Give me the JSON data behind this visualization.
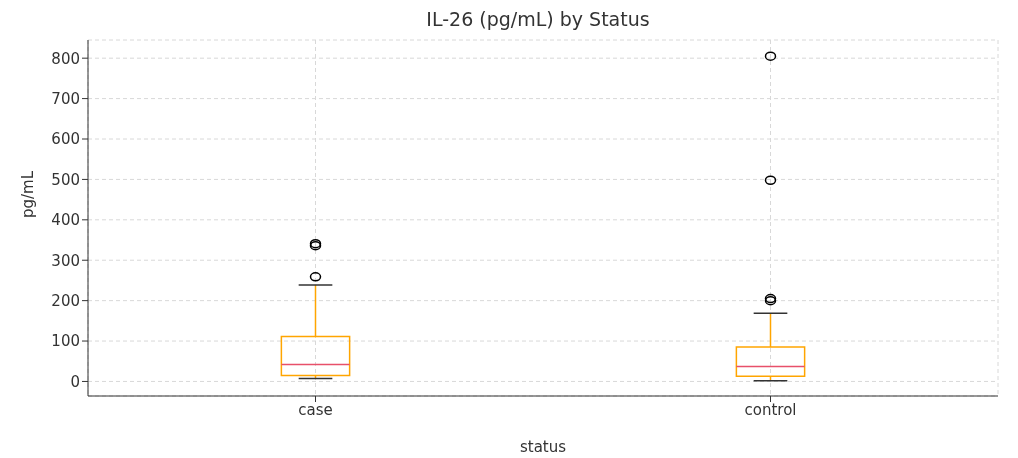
{
  "chart_data": {
    "type": "box",
    "title": "IL-26 (pg/mL) by Status",
    "xlabel": "status",
    "ylabel": "pg/mL",
    "categories": [
      "case",
      "control"
    ],
    "boxes": [
      {
        "low": 7,
        "q1": 15,
        "median": 42,
        "q3": 111,
        "high": 239,
        "outliers": [
          259,
          336,
          341
        ]
      },
      {
        "low": 2,
        "q1": 13,
        "median": 37,
        "q3": 85,
        "high": 169,
        "outliers": [
          200,
          205,
          498,
          805
        ]
      }
    ],
    "color": "#ffa500",
    "ylim": [
      -36,
      845
    ],
    "yticks": [
      0,
      100,
      200,
      300,
      400,
      500,
      600,
      700,
      800
    ],
    "grid": true,
    "marker": "circle"
  }
}
